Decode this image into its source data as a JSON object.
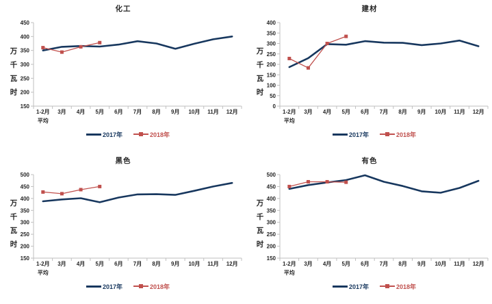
{
  "colors": {
    "series_2017": "#17375E",
    "series_2018": "#C0504D",
    "axis": "#BFBFBF",
    "text": "#262626",
    "background": "#FFFFFF"
  },
  "legend": {
    "label_2017": "2017年",
    "label_2018": "2018年"
  },
  "chart_data": [
    {
      "type": "line",
      "title": "化工",
      "ylabel": "万千瓦时",
      "ylim": [
        150,
        450
      ],
      "ytick_step": 50,
      "grid": false,
      "legend_position": "bottom",
      "categories": [
        "1-2月\n平均",
        "3月",
        "4月",
        "5月",
        "6月",
        "7月",
        "8月",
        "9月",
        "10月",
        "11月",
        "12月"
      ],
      "series": [
        {
          "name": "2017年",
          "marker": "none",
          "values": [
            350,
            363,
            366,
            364,
            371,
            383,
            375,
            356,
            374,
            390,
            400
          ]
        },
        {
          "name": "2018年",
          "marker": "square",
          "values": [
            360,
            344,
            363,
            378
          ]
        }
      ]
    },
    {
      "type": "line",
      "title": "建材",
      "ylabel": "万千瓦时",
      "ylim": [
        0,
        400
      ],
      "ytick_step": 50,
      "grid": false,
      "legend_position": "bottom",
      "categories": [
        "1-2月\n平均",
        "3月",
        "4月",
        "5月",
        "6月",
        "7月",
        "8月",
        "9月",
        "10月",
        "11月",
        "12月"
      ],
      "series": [
        {
          "name": "2017年",
          "marker": "none",
          "values": [
            187,
            230,
            297,
            294,
            311,
            304,
            303,
            292,
            300,
            314,
            287
          ]
        },
        {
          "name": "2018年",
          "marker": "square",
          "values": [
            228,
            183,
            300,
            334
          ]
        }
      ]
    },
    {
      "type": "line",
      "title": "黑色",
      "ylabel": "万千瓦时",
      "ylim": [
        150,
        500
      ],
      "ytick_step": 50,
      "grid": false,
      "legend_position": "bottom",
      "categories": [
        "1-2月\n平均",
        "3月",
        "4月",
        "5月",
        "6月",
        "7月",
        "8月",
        "9月",
        "10月",
        "11月",
        "12月"
      ],
      "series": [
        {
          "name": "2017年",
          "marker": "none",
          "values": [
            388,
            396,
            401,
            384,
            404,
            417,
            418,
            415,
            432,
            450,
            465
          ]
        },
        {
          "name": "2018年",
          "marker": "square",
          "values": [
            427,
            420,
            437,
            450
          ]
        }
      ]
    },
    {
      "type": "line",
      "title": "有色",
      "ylabel": "万千瓦时",
      "ylim": [
        150,
        500
      ],
      "ytick_step": 50,
      "grid": false,
      "legend_position": "bottom",
      "categories": [
        "1-2月\n平均",
        "3月",
        "4月",
        "5月",
        "6月",
        "7月",
        "8月",
        "9月",
        "10月",
        "11月",
        "12月"
      ],
      "series": [
        {
          "name": "2017年",
          "marker": "none",
          "values": [
            440,
            456,
            467,
            477,
            497,
            470,
            452,
            430,
            424,
            444,
            474
          ]
        },
        {
          "name": "2018年",
          "marker": "square",
          "values": [
            450,
            470,
            470,
            468
          ]
        }
      ]
    }
  ]
}
